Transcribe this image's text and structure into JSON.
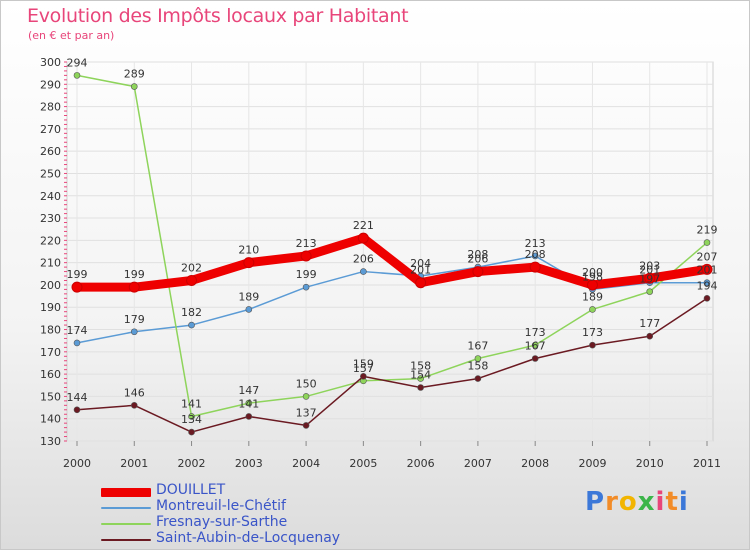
{
  "title": "Evolution des Impôts locaux par Habitant",
  "subtitle": "(en € et par an)",
  "brand": {
    "letters": [
      "P",
      "r",
      "o",
      "x",
      "i",
      "t",
      "i"
    ],
    "colors": [
      "#3c78d8",
      "#f28c28",
      "#f2b500",
      "#3cb54a",
      "#e8457a",
      "#f28c28",
      "#3c78d8"
    ]
  },
  "chart_data": {
    "type": "line",
    "title": "Evolution des Impôts locaux par Habitant",
    "subtitle": "(en € et par an)",
    "xlabel": "",
    "ylabel": "",
    "x": [
      "2000",
      "2001",
      "2002",
      "2003",
      "2004",
      "2005",
      "2006",
      "2007",
      "2008",
      "2009",
      "2010",
      "2011"
    ],
    "ylim": [
      130,
      300
    ],
    "yticks": [
      "130",
      "140",
      "150",
      "160",
      "170",
      "180",
      "190",
      "200",
      "210",
      "220",
      "230",
      "240",
      "250",
      "260",
      "270",
      "280",
      "290",
      "300"
    ],
    "grid": true,
    "legend_position": "bottom-left",
    "series": [
      {
        "name": "DOUILLET",
        "color": "#ee0000",
        "values": [
          199,
          199,
          202,
          210,
          213,
          221,
          201,
          206,
          208,
          200,
          203,
          207
        ],
        "labels": [
          "199",
          "199",
          "202",
          "210",
          "213",
          "221",
          "201",
          "206",
          "208",
          "200",
          "203",
          "207"
        ]
      },
      {
        "name": "Montreuil-le-Chétif",
        "color": "#5b9bd5",
        "values": [
          174,
          179,
          182,
          189,
          199,
          206,
          204,
          208,
          213,
          198,
          201,
          201
        ],
        "labels": [
          "174",
          "179",
          "182",
          "189",
          "199",
          "206",
          "204",
          "208",
          "213",
          "198",
          "201",
          "201"
        ]
      },
      {
        "name": "Fresnay-sur-Sarthe",
        "color": "#8ed45b",
        "values": [
          294,
          289,
          141,
          147,
          150,
          157,
          158,
          167,
          173,
          189,
          197,
          219
        ],
        "labels": [
          "294",
          "289",
          "141",
          "147",
          "150",
          "157",
          "158",
          "167",
          "173",
          "189",
          "197",
          "219"
        ]
      },
      {
        "name": "Saint-Aubin-de-Locquenay",
        "color": "#6b1a22",
        "values": [
          144,
          146,
          134,
          141,
          137,
          159,
          154,
          158,
          167,
          173,
          177,
          194
        ],
        "labels": [
          "144",
          "146",
          "134",
          "141",
          "137",
          "159",
          "154",
          "158",
          "167",
          "173",
          "177",
          "194"
        ]
      }
    ]
  }
}
